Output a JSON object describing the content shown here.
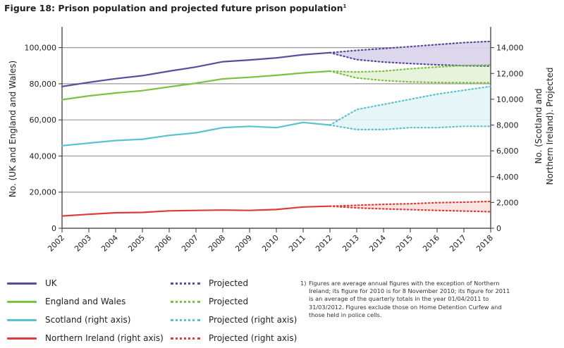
{
  "title": "Figure 18: Prison population and projected future prison population",
  "title_superscript": "1",
  "colors": {
    "uk": "#5b4a9e",
    "ew": "#7cc242",
    "scotland": "#5bc3cf",
    "ni": "#de3c3a",
    "uk_fill": "#d8d3ea",
    "ew_fill": "#e4f2d6",
    "scotland_fill": "#e2f4f7",
    "ni_fill": "#fbe0dc",
    "gridline": "#9a9a9a",
    "axis": "#333333"
  },
  "chart_data": {
    "type": "line",
    "title": "Figure 18: Prison population and projected future prison population",
    "x": [
      "2002",
      "2003",
      "2004",
      "2005",
      "2006",
      "2007",
      "2008",
      "2009",
      "2010",
      "2011",
      "2012",
      "2013",
      "2014",
      "2015",
      "2016",
      "2017",
      "2018"
    ],
    "ylabel_left": "No. (UK and England and Wales)",
    "ylabel_right": "No. (Scotland and Northern Ireland). Projected",
    "ylim_left": [
      0,
      110000
    ],
    "ylim_right": [
      0,
      15400
    ],
    "yticks_left": [
      "0",
      "20,000",
      "40,000",
      "60,000",
      "80,000",
      "100,000"
    ],
    "yticks_right": [
      "0",
      "2,000",
      "4,000",
      "6,000",
      "8,000",
      "10,000",
      "12,000",
      "14,000"
    ],
    "grid": true,
    "series": [
      {
        "name": "UK",
        "axis": "left",
        "x": [
          "2002",
          "2003",
          "2004",
          "2005",
          "2006",
          "2007",
          "2008",
          "2009",
          "2010",
          "2011",
          "2012"
        ],
        "values": [
          78500,
          80800,
          82800,
          84500,
          87000,
          89300,
          92200,
          93200,
          94300,
          96100,
          97200
        ]
      },
      {
        "name": "England and Wales",
        "axis": "left",
        "x": [
          "2002",
          "2003",
          "2004",
          "2005",
          "2006",
          "2007",
          "2008",
          "2009",
          "2010",
          "2011",
          "2012"
        ],
        "values": [
          71200,
          73300,
          74900,
          76200,
          78300,
          80300,
          82700,
          83600,
          84700,
          86000,
          87000
        ]
      },
      {
        "name": "Scotland (right axis)",
        "axis": "right",
        "x": [
          "2002",
          "2003",
          "2004",
          "2005",
          "2006",
          "2007",
          "2008",
          "2009",
          "2010",
          "2011",
          "2012"
        ],
        "values": [
          6400,
          6600,
          6800,
          6900,
          7200,
          7400,
          7800,
          7900,
          7800,
          8200,
          8000
        ]
      },
      {
        "name": "Northern Ireland (right axis)",
        "axis": "right",
        "x": [
          "2002",
          "2003",
          "2004",
          "2005",
          "2006",
          "2007",
          "2008",
          "2009",
          "2010",
          "2011",
          "2012"
        ],
        "values": [
          950,
          1080,
          1200,
          1230,
          1350,
          1380,
          1410,
          1380,
          1450,
          1650,
          1710
        ]
      }
    ],
    "projections": [
      {
        "name": "Projected",
        "of": "UK",
        "axis": "left",
        "x": [
          "2012",
          "2013",
          "2014",
          "2015",
          "2016",
          "2017",
          "2018"
        ],
        "high": [
          97200,
          98500,
          99500,
          100600,
          101700,
          102800,
          103500
        ],
        "low": [
          97200,
          93400,
          92000,
          91200,
          90500,
          90000,
          89800
        ]
      },
      {
        "name": "Projected",
        "of": "England and Wales",
        "axis": "left",
        "x": [
          "2012",
          "2013",
          "2014",
          "2015",
          "2016",
          "2017",
          "2018"
        ],
        "high": [
          87000,
          86500,
          87000,
          88300,
          89300,
          90100,
          90400
        ],
        "low": [
          87000,
          83200,
          81800,
          81000,
          80700,
          80600,
          80500
        ]
      },
      {
        "name": "Projected (right axis)",
        "of": "Scotland (right axis)",
        "axis": "right",
        "x": [
          "2012",
          "2013",
          "2014",
          "2015",
          "2016",
          "2017",
          "2018"
        ],
        "high": [
          8000,
          9200,
          9600,
          10000,
          10400,
          10700,
          11000
        ],
        "low": [
          8000,
          7650,
          7650,
          7800,
          7800,
          7900,
          7900
        ]
      },
      {
        "name": "Projected (right axis)",
        "of": "Northern Ireland (right axis)",
        "axis": "right",
        "x": [
          "2012",
          "2013",
          "2014",
          "2015",
          "2016",
          "2017",
          "2018"
        ],
        "high": [
          1710,
          1780,
          1850,
          1900,
          1980,
          2020,
          2080
        ],
        "low": [
          1710,
          1580,
          1500,
          1440,
          1380,
          1330,
          1280
        ]
      }
    ]
  },
  "legend": {
    "items": [
      {
        "label": "UK",
        "color_key": "uk",
        "style": "solid"
      },
      {
        "label": "England and Wales",
        "color_key": "ew",
        "style": "solid"
      },
      {
        "label": "Scotland (right axis)",
        "color_key": "scotland",
        "style": "solid"
      },
      {
        "label": "Northern Ireland (right axis)",
        "color_key": "ni",
        "style": "solid"
      },
      {
        "label": "Projected",
        "color_key": "uk",
        "style": "dotted"
      },
      {
        "label": "Projected",
        "color_key": "ew",
        "style": "dotted"
      },
      {
        "label": "Projected (right axis)",
        "color_key": "scotland",
        "style": "dotted"
      },
      {
        "label": "Projected (right axis)",
        "color_key": "ni",
        "style": "dotted"
      }
    ]
  },
  "footnote": {
    "number": "1)",
    "text": "Figures are average annual figures with the exception of Northern Ireland; its figure for 2010 is for 8 November 2010; its figure for 2011 is an average of the quarterly totals in the year 01/04/2011 to 31/03/2012. Figures exclude those on Home Detention Curfew and those held in police cells."
  }
}
